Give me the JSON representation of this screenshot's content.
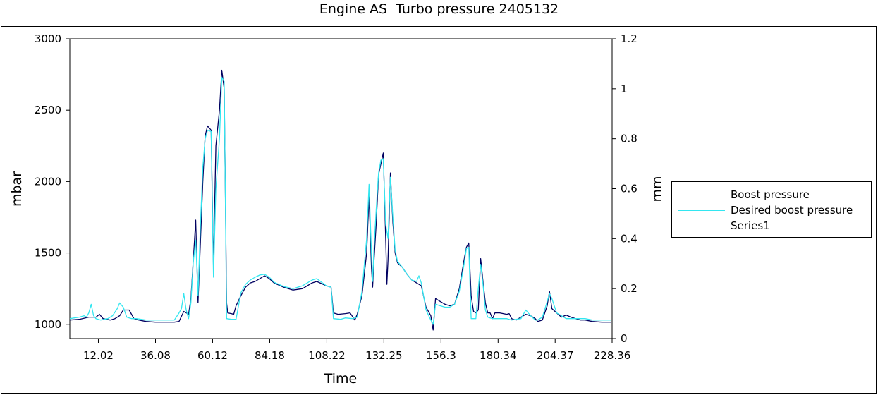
{
  "chart_data": {
    "type": "line",
    "title": "Engine AS  Turbo pressure 2405132",
    "xlabel": "Time",
    "ylabel": "mbar",
    "y2label": "mm",
    "xlim": [
      0,
      228.36
    ],
    "ylim": [
      900,
      3000
    ],
    "y2lim": [
      0,
      1.2
    ],
    "x_ticks": [
      "12.02",
      "36.08",
      "60.12",
      "84.18",
      "108.22",
      "132.25",
      "156.3",
      "180.34",
      "204.37",
      "228.36"
    ],
    "y_ticks": [
      "1000",
      "1500",
      "2000",
      "2500",
      "3000"
    ],
    "y2_ticks": [
      "0",
      "0.2",
      "0.4",
      "0.6",
      "0.8",
      "1",
      "1.2"
    ],
    "grid": false,
    "legend": "right",
    "series": [
      {
        "name": "Boost pressure",
        "color": "#000060",
        "axis": "left",
        "points": [
          [
            0,
            1030
          ],
          [
            4,
            1035
          ],
          [
            8,
            1050
          ],
          [
            11,
            1050
          ],
          [
            12.5,
            1070
          ],
          [
            14,
            1040
          ],
          [
            17,
            1030
          ],
          [
            19,
            1040
          ],
          [
            21,
            1060
          ],
          [
            22.5,
            1100
          ],
          [
            25,
            1100
          ],
          [
            27,
            1040
          ],
          [
            29,
            1030
          ],
          [
            32,
            1020
          ],
          [
            36,
            1015
          ],
          [
            40,
            1015
          ],
          [
            44,
            1015
          ],
          [
            46,
            1020
          ],
          [
            48,
            1090
          ],
          [
            50,
            1070
          ],
          [
            51,
            1180
          ],
          [
            52,
            1450
          ],
          [
            53,
            1730
          ],
          [
            54,
            1150
          ],
          [
            56,
            2000
          ],
          [
            57,
            2320
          ],
          [
            58,
            2390
          ],
          [
            59.5,
            2360
          ],
          [
            60.5,
            1400
          ],
          [
            61.5,
            2250
          ],
          [
            63,
            2500
          ],
          [
            64,
            2780
          ],
          [
            65,
            2650
          ],
          [
            66,
            1150
          ],
          [
            66.5,
            1080
          ],
          [
            68,
            1075
          ],
          [
            69,
            1070
          ],
          [
            70,
            1130
          ],
          [
            72,
            1200
          ],
          [
            74,
            1260
          ],
          [
            76,
            1290
          ],
          [
            78,
            1300
          ],
          [
            80,
            1320
          ],
          [
            82,
            1340
          ],
          [
            84,
            1320
          ],
          [
            86,
            1290
          ],
          [
            90,
            1260
          ],
          [
            94,
            1240
          ],
          [
            98,
            1250
          ],
          [
            102,
            1290
          ],
          [
            104,
            1300
          ],
          [
            108,
            1270
          ],
          [
            110,
            1260
          ],
          [
            111,
            1080
          ],
          [
            113,
            1070
          ],
          [
            116,
            1075
          ],
          [
            118,
            1080
          ],
          [
            120,
            1030
          ],
          [
            121,
            1070
          ],
          [
            123,
            1200
          ],
          [
            125,
            1500
          ],
          [
            126,
            1900
          ],
          [
            127,
            1400
          ],
          [
            127.5,
            1260
          ],
          [
            128,
            1420
          ],
          [
            129,
            1700
          ],
          [
            130,
            2050
          ],
          [
            132,
            2200
          ],
          [
            133,
            1600
          ],
          [
            133.5,
            1280
          ],
          [
            134,
            1450
          ],
          [
            135,
            2060
          ],
          [
            136,
            1720
          ],
          [
            137,
            1500
          ],
          [
            138,
            1430
          ],
          [
            140,
            1400
          ],
          [
            142,
            1350
          ],
          [
            144,
            1310
          ],
          [
            146,
            1290
          ],
          [
            148,
            1270
          ],
          [
            150,
            1120
          ],
          [
            152,
            1060
          ],
          [
            153,
            960
          ],
          [
            154,
            1180
          ],
          [
            156,
            1160
          ],
          [
            158,
            1140
          ],
          [
            160,
            1130
          ],
          [
            162,
            1140
          ],
          [
            164,
            1250
          ],
          [
            166,
            1450
          ],
          [
            167,
            1540
          ],
          [
            168,
            1570
          ],
          [
            169,
            1200
          ],
          [
            170,
            1090
          ],
          [
            171,
            1080
          ],
          [
            172,
            1100
          ],
          [
            173,
            1460
          ],
          [
            174,
            1300
          ],
          [
            175,
            1150
          ],
          [
            176,
            1080
          ],
          [
            177,
            1080
          ],
          [
            178,
            1040
          ],
          [
            179,
            1080
          ],
          [
            181,
            1080
          ],
          [
            184,
            1070
          ],
          [
            185,
            1075
          ],
          [
            186,
            1040
          ],
          [
            188,
            1030
          ],
          [
            190,
            1050
          ],
          [
            192,
            1070
          ],
          [
            194,
            1060
          ],
          [
            196,
            1040
          ],
          [
            197,
            1020
          ],
          [
            199,
            1030
          ],
          [
            201,
            1130
          ],
          [
            202,
            1230
          ],
          [
            203,
            1110
          ],
          [
            205,
            1080
          ],
          [
            207,
            1050
          ],
          [
            209,
            1065
          ],
          [
            211,
            1050
          ],
          [
            213,
            1040
          ],
          [
            215,
            1030
          ],
          [
            217,
            1030
          ],
          [
            220,
            1020
          ],
          [
            224,
            1015
          ],
          [
            228,
            1015
          ]
        ]
      },
      {
        "name": "Desired boost pressure",
        "color": "#33e6f0",
        "axis": "left",
        "points": [
          [
            0,
            1040
          ],
          [
            4,
            1050
          ],
          [
            6,
            1060
          ],
          [
            7,
            1050
          ],
          [
            8,
            1080
          ],
          [
            9,
            1140
          ],
          [
            10,
            1060
          ],
          [
            11,
            1040
          ],
          [
            13,
            1030
          ],
          [
            16,
            1040
          ],
          [
            18,
            1060
          ],
          [
            20,
            1110
          ],
          [
            21,
            1150
          ],
          [
            22.5,
            1120
          ],
          [
            24,
            1050
          ],
          [
            26,
            1040
          ],
          [
            28,
            1040
          ],
          [
            32,
            1030
          ],
          [
            36,
            1030
          ],
          [
            40,
            1030
          ],
          [
            44,
            1030
          ],
          [
            46,
            1080
          ],
          [
            47,
            1110
          ],
          [
            48,
            1215
          ],
          [
            49,
            1100
          ],
          [
            50,
            1040
          ],
          [
            51,
            1150
          ],
          [
            52,
            1440
          ],
          [
            53,
            1590
          ],
          [
            54,
            1200
          ],
          [
            55,
            1700
          ],
          [
            56,
            2100
          ],
          [
            57,
            2300
          ],
          [
            58,
            2360
          ],
          [
            59.5,
            2350
          ],
          [
            60.5,
            1330
          ],
          [
            61.5,
            1950
          ],
          [
            63,
            2300
          ],
          [
            64,
            2730
          ],
          [
            65,
            2700
          ],
          [
            66,
            1040
          ],
          [
            68,
            1035
          ],
          [
            70,
            1035
          ],
          [
            72,
            1220
          ],
          [
            74,
            1280
          ],
          [
            76,
            1310
          ],
          [
            78,
            1330
          ],
          [
            80,
            1345
          ],
          [
            82,
            1350
          ],
          [
            84,
            1330
          ],
          [
            86,
            1295
          ],
          [
            90,
            1265
          ],
          [
            94,
            1250
          ],
          [
            98,
            1270
          ],
          [
            102,
            1310
          ],
          [
            104,
            1320
          ],
          [
            108,
            1270
          ],
          [
            110,
            1260
          ],
          [
            111,
            1040
          ],
          [
            114,
            1035
          ],
          [
            116,
            1045
          ],
          [
            119,
            1040
          ],
          [
            121,
            1050
          ],
          [
            123,
            1230
          ],
          [
            125,
            1600
          ],
          [
            126,
            1980
          ],
          [
            127,
            1500
          ],
          [
            127.5,
            1300
          ],
          [
            128,
            1500
          ],
          [
            129,
            1800
          ],
          [
            130,
            2060
          ],
          [
            131,
            2150
          ],
          [
            132,
            2160
          ],
          [
            133,
            1700
          ],
          [
            134,
            1600
          ],
          [
            135,
            2030
          ],
          [
            136,
            1760
          ],
          [
            137,
            1520
          ],
          [
            138,
            1440
          ],
          [
            140,
            1400
          ],
          [
            142,
            1350
          ],
          [
            144,
            1310
          ],
          [
            146,
            1300
          ],
          [
            147,
            1340
          ],
          [
            148,
            1290
          ],
          [
            150,
            1100
          ],
          [
            152,
            1030
          ],
          [
            153,
            1000
          ],
          [
            154,
            1140
          ],
          [
            156,
            1130
          ],
          [
            158,
            1120
          ],
          [
            160,
            1120
          ],
          [
            162,
            1140
          ],
          [
            164,
            1230
          ],
          [
            166,
            1420
          ],
          [
            167,
            1530
          ],
          [
            168,
            1540
          ],
          [
            169,
            1040
          ],
          [
            171,
            1040
          ],
          [
            172,
            1250
          ],
          [
            173,
            1420
          ],
          [
            174,
            1280
          ],
          [
            175,
            1100
          ],
          [
            176,
            1050
          ],
          [
            178,
            1040
          ],
          [
            180,
            1040
          ],
          [
            182,
            1040
          ],
          [
            184,
            1040
          ],
          [
            186,
            1030
          ],
          [
            190,
            1040
          ],
          [
            192,
            1100
          ],
          [
            194,
            1060
          ],
          [
            196,
            1030
          ],
          [
            197,
            1030
          ],
          [
            199,
            1050
          ],
          [
            201,
            1160
          ],
          [
            202,
            1215
          ],
          [
            203,
            1180
          ],
          [
            205,
            1080
          ],
          [
            207,
            1060
          ],
          [
            209,
            1040
          ],
          [
            211,
            1040
          ],
          [
            213,
            1040
          ],
          [
            215,
            1040
          ],
          [
            217,
            1040
          ],
          [
            220,
            1030
          ],
          [
            224,
            1030
          ],
          [
            228,
            1030
          ]
        ]
      },
      {
        "name": "Series1",
        "color": "#e07818",
        "axis": "right",
        "points": []
      }
    ]
  }
}
